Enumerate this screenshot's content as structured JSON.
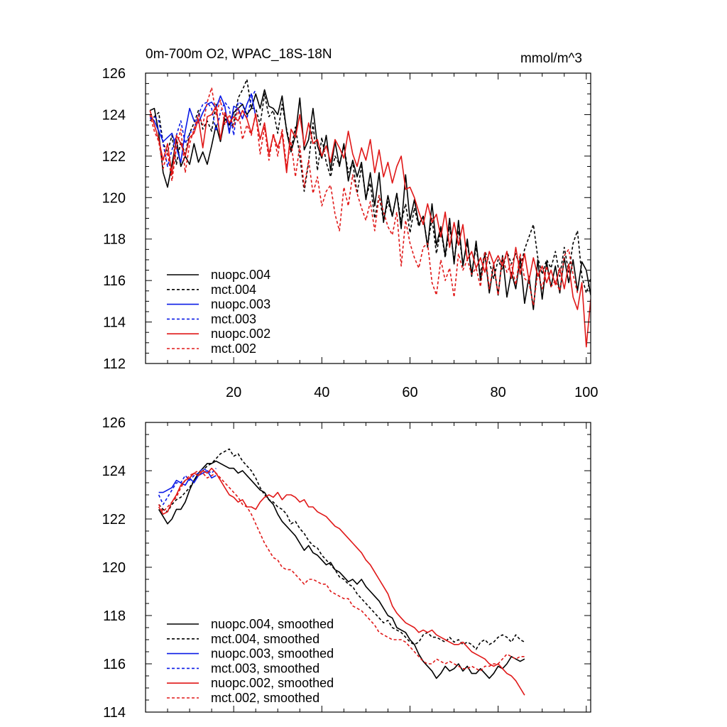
{
  "chart_data": [
    {
      "type": "line",
      "title": "0m-700m O2, WPAC_18S-18N",
      "units": "mmol/m^3",
      "xlim": [
        0,
        101
      ],
      "ylim": [
        112,
        126
      ],
      "x_ticks": [
        20,
        40,
        60,
        80,
        100
      ],
      "y_ticks": [
        112,
        114,
        116,
        118,
        120,
        122,
        124,
        126
      ],
      "legend_position": "bottom-left",
      "series": [
        {
          "name": "nuopc.004",
          "color": "#000000",
          "dash": false,
          "x_start": 1,
          "values": [
            124.2,
            124.3,
            123.1,
            121.2,
            120.5,
            121.6,
            122.8,
            121.5,
            122.0,
            121.6,
            122.6,
            121.7,
            122.2,
            121.6,
            122.5,
            123.5,
            122.7,
            123.8,
            123.5,
            124.1,
            124.3,
            124.5,
            124.0,
            124.3,
            125.0,
            124.3,
            125.2,
            124.4,
            124.3,
            124.0,
            124.9,
            123.2,
            122.2,
            123.0,
            124.8,
            122.3,
            122.8,
            124.3,
            122.5,
            121.9,
            123.0,
            121.3,
            122.7,
            121.5,
            122.6,
            120.8,
            121.8,
            121.0,
            121.7,
            119.9,
            121.2,
            119.6,
            121.2,
            118.8,
            120.1,
            119.1,
            120.2,
            118.5,
            121.1,
            118.9,
            119.9,
            118.7,
            119.1,
            117.6,
            119.7,
            117.7,
            118.6,
            117.2,
            119.0,
            116.8,
            118.9,
            116.7,
            118.0,
            116.2,
            117.9,
            116.0,
            117.3,
            115.4,
            116.8,
            115.3,
            117.2,
            115.2,
            116.4,
            115.6,
            117.1,
            114.9,
            116.2,
            114.6,
            117.0,
            115.1,
            116.9,
            115.7,
            116.7,
            115.4,
            117.1,
            115.9,
            117.0,
            115.5,
            116.9,
            116.5,
            115.3
          ]
        },
        {
          "name": "mct.004",
          "color": "#000000",
          "dash": true,
          "x_start": 1,
          "values": [
            123.7,
            123.9,
            124.1,
            122.6,
            122.2,
            123.0,
            121.6,
            122.7,
            122.1,
            123.1,
            123.6,
            124.2,
            123.3,
            123.7,
            123.2,
            124.5,
            122.7,
            124.0,
            123.3,
            123.6,
            124.8,
            125.2,
            125.7,
            124.3,
            124.3,
            123.5,
            125.0,
            123.9,
            124.2,
            123.1,
            124.5,
            123.3,
            122.3,
            123.4,
            122.0,
            120.3,
            121.7,
            123.6,
            121.3,
            122.9,
            121.7,
            121.0,
            122.0,
            121.6,
            122.5,
            121.2,
            121.7,
            120.2,
            121.5,
            120.0,
            120.7,
            119.0,
            120.1,
            118.9,
            119.8,
            119.1,
            120.2,
            118.8,
            119.7,
            118.3,
            119.5,
            118.6,
            119.1,
            117.7,
            119.0,
            117.3,
            118.5,
            117.1,
            118.6,
            117.0,
            118.4,
            116.8,
            117.8,
            116.4,
            117.6,
            116.3,
            117.4,
            116.9,
            116.1,
            117.0,
            116.5,
            117.4,
            116.8,
            117.3,
            116.6,
            117.5,
            118.1,
            118.7,
            117.1,
            116.3,
            117.0,
            116.6,
            117.4,
            116.2,
            117.6,
            116.4,
            117.8,
            118.4,
            116.2,
            115.4,
            116.1
          ]
        },
        {
          "name": "nuopc.003",
          "color": "#0a1ae6",
          "dash": false,
          "x_start": 1,
          "values": [
            123.9,
            123.7,
            123.2,
            122.7,
            122.9,
            123.1,
            122.4,
            121.7,
            123.2,
            124.3,
            123.7,
            123.6,
            124.1,
            124.5,
            124.6,
            124.3,
            124.9,
            124.4,
            123.1,
            124.4,
            124.3,
            123.8,
            124.5,
            125.0,
            123.9
          ]
        },
        {
          "name": "mct.003",
          "color": "#0a1ae6",
          "dash": true,
          "x_start": 1,
          "values": [
            123.8,
            123.9,
            123.7,
            122.6,
            121.5,
            122.3,
            123.0,
            123.7,
            122.6,
            123.1,
            123.3,
            124.0,
            124.5,
            124.6,
            124.3,
            123.2,
            124.1,
            124.6,
            124.3,
            123.0,
            124.6,
            124.5,
            123.8,
            124.8,
            125.2
          ]
        },
        {
          "name": "nuopc.002",
          "color": "#e01818",
          "dash": false,
          "x_start": 1,
          "values": [
            124.2,
            123.5,
            122.8,
            121.8,
            122.6,
            121.1,
            123.0,
            122.6,
            122.0,
            122.9,
            123.1,
            123.8,
            122.4,
            123.9,
            124.0,
            124.4,
            122.8,
            124.1,
            123.6,
            123.9,
            123.7,
            124.2,
            123.8,
            123.1,
            124.0,
            122.8,
            123.6,
            122.1,
            123.0,
            122.4,
            123.1,
            121.2,
            123.3,
            122.9,
            124.0,
            122.5,
            123.6,
            122.6,
            122.8,
            122.0,
            122.5,
            121.7,
            122.8,
            122.4,
            121.9,
            123.2,
            122.1,
            121.5,
            122.4,
            121.8,
            122.8,
            121.2,
            122.3,
            121.0,
            121.7,
            120.7,
            121.5,
            122.0,
            120.4,
            120.5,
            120.0,
            119.3,
            118.7,
            119.7,
            118.8,
            119.2,
            118.1,
            119.3,
            117.6,
            118.8,
            117.7,
            118.7,
            117.0,
            117.4,
            116.6,
            117.1,
            116.4,
            117.4,
            116.8,
            117.2,
            116.7,
            117.4,
            116.1,
            117.6,
            116.3,
            117.3,
            116.0,
            117.1,
            116.2,
            116.7,
            115.9,
            116.5,
            115.8,
            116.6,
            115.6,
            116.8,
            115.2,
            114.6,
            115.9,
            112.8,
            115.1
          ]
        },
        {
          "name": "mct.002",
          "color": "#e01818",
          "dash": true,
          "x_start": 1,
          "values": [
            124.0,
            123.2,
            122.7,
            121.4,
            122.2,
            120.8,
            122.4,
            123.3,
            121.2,
            122.6,
            123.3,
            124.0,
            123.5,
            124.6,
            125.3,
            124.0,
            124.7,
            123.5,
            124.0,
            123.4,
            124.3,
            122.8,
            123.5,
            123.0,
            124.1,
            122.1,
            123.4,
            121.8,
            123.1,
            122.0,
            123.3,
            121.5,
            122.7,
            121.0,
            122.5,
            120.5,
            121.8,
            120.2,
            121.0,
            119.6,
            120.3,
            120.6,
            119.2,
            118.4,
            120.5,
            119.6,
            121.1,
            120.2,
            119.5,
            118.9,
            119.8,
            118.4,
            120.1,
            119.3,
            118.6,
            118.2,
            119.3,
            116.7,
            118.9,
            117.8,
            117.1,
            116.6,
            117.6,
            117.8,
            115.9,
            115.3,
            117.0,
            116.0,
            116.6,
            115.2,
            117.3,
            116.5,
            117.0,
            116.3,
            116.6,
            115.7,
            117.4,
            115.6,
            116.8,
            115.3,
            117.1,
            116.4,
            116.8,
            115.8,
            117.3,
            116.1,
            115.9,
            114.8,
            116.4,
            115.6,
            116.7,
            115.7,
            116.0,
            115.5,
            117.2,
            117.5,
            116.3,
            115.4
          ]
        }
      ]
    },
    {
      "type": "line",
      "xlim": [
        0,
        101
      ],
      "ylim": [
        114,
        126
      ],
      "y_ticks": [
        114,
        116,
        118,
        120,
        122,
        124,
        126
      ],
      "legend_position": "bottom-left",
      "series": [
        {
          "name": "nuopc.004, smoothed",
          "color": "#000000",
          "dash": false,
          "x_start": 3,
          "values": [
            122.4,
            122.1,
            121.8,
            122.0,
            122.4,
            122.4,
            122.7,
            123.2,
            123.6,
            123.9,
            124.1,
            124.3,
            124.3,
            124.4,
            124.3,
            124.2,
            124.1,
            124.1,
            123.9,
            124.0,
            123.8,
            123.6,
            123.4,
            123.2,
            123.1,
            122.8,
            122.6,
            122.2,
            121.9,
            121.7,
            121.5,
            121.3,
            121.0,
            120.7,
            120.9,
            120.6,
            120.5,
            120.3,
            120.1,
            120.2,
            119.9,
            119.8,
            119.6,
            119.4,
            119.5,
            119.3,
            119.5,
            119.2,
            119.0,
            118.8,
            118.6,
            118.3,
            118.0,
            117.9,
            117.5,
            117.4,
            117.3,
            117.0,
            116.8,
            116.4,
            116.1,
            115.9,
            115.7,
            115.4,
            115.6,
            115.9,
            115.7,
            115.8,
            116.0,
            115.7,
            115.9,
            115.6,
            115.6,
            115.8,
            115.6,
            115.4,
            115.6,
            115.9,
            115.8,
            116.0,
            116.3,
            116.2,
            116.1,
            116.2
          ]
        },
        {
          "name": "mct.004, smoothed",
          "color": "#000000",
          "dash": true,
          "x_start": 3,
          "values": [
            122.6,
            122.4,
            122.3,
            122.6,
            122.8,
            122.9,
            123.1,
            123.3,
            123.6,
            123.8,
            124.0,
            124.2,
            124.3,
            124.5,
            124.7,
            124.8,
            124.9,
            124.6,
            124.7,
            124.4,
            124.2,
            124.0,
            123.7,
            123.3,
            123.0,
            122.8,
            122.7,
            122.5,
            122.4,
            122.2,
            121.8,
            121.9,
            121.6,
            121.4,
            121.1,
            120.9,
            120.8,
            120.5,
            120.3,
            120.1,
            119.9,
            119.6,
            119.5,
            119.3,
            119.2,
            118.9,
            118.7,
            118.5,
            118.3,
            118.1,
            117.9,
            117.7,
            117.8,
            117.5,
            117.4,
            117.3,
            117.1,
            116.9,
            116.8,
            116.9,
            117.2,
            117.3,
            117.1,
            117.1,
            117.0,
            116.9,
            117.1,
            116.9,
            117.0,
            116.8,
            116.9,
            116.8,
            116.6,
            116.9,
            117.0,
            116.8,
            116.9,
            117.1,
            117.2,
            117.1,
            116.9,
            117.2,
            117.0,
            116.9
          ]
        },
        {
          "name": "nuopc.003, smoothed",
          "color": "#0a1ae6",
          "dash": false,
          "x_start": 3,
          "values": [
            123.1,
            123.1,
            123.2,
            123.3,
            123.6,
            123.5,
            123.4,
            123.7,
            123.5,
            123.8,
            123.9,
            124.0,
            123.7,
            123.8
          ]
        },
        {
          "name": "mct.003, smoothed",
          "color": "#0a1ae6",
          "dash": true,
          "x_start": 3,
          "values": [
            123.0,
            122.6,
            122.9,
            123.2,
            123.5,
            123.5,
            123.8,
            123.6,
            123.8,
            123.9,
            124.1,
            124.0,
            123.9,
            124.1
          ]
        },
        {
          "name": "nuopc.002, smoothed",
          "color": "#e01818",
          "dash": false,
          "x_start": 3,
          "values": [
            122.5,
            122.2,
            122.3,
            122.7,
            123.0,
            123.4,
            123.6,
            123.7,
            123.9,
            123.8,
            124.0,
            123.9,
            124.1,
            123.9,
            123.6,
            123.3,
            123.0,
            122.9,
            122.7,
            122.8,
            122.5,
            122.5,
            122.4,
            122.7,
            122.9,
            123.0,
            122.9,
            123.1,
            122.8,
            123.0,
            123.0,
            122.9,
            122.7,
            122.8,
            122.5,
            122.5,
            122.3,
            122.2,
            122.1,
            121.9,
            121.7,
            121.6,
            121.4,
            121.2,
            121.0,
            120.8,
            120.6,
            120.3,
            120.1,
            119.8,
            119.5,
            119.2,
            118.9,
            118.4,
            118.1,
            117.9,
            117.7,
            117.6,
            117.5,
            117.3,
            117.4,
            117.3,
            117.4,
            117.2,
            117.1,
            117.0,
            116.9,
            116.8,
            116.8,
            116.9,
            116.7,
            116.5,
            116.4,
            116.3,
            116.2,
            116.0,
            115.9,
            116.0,
            115.8,
            115.6,
            115.5,
            115.3,
            115.0,
            114.7
          ]
        },
        {
          "name": "mct.002, smoothed",
          "color": "#e01818",
          "dash": true,
          "x_start": 3,
          "values": [
            122.6,
            122.3,
            122.5,
            122.7,
            122.9,
            123.3,
            123.6,
            123.8,
            123.9,
            124.0,
            123.9,
            123.7,
            123.8,
            123.9,
            123.7,
            123.5,
            123.3,
            123.1,
            122.9,
            122.6,
            122.5,
            122.2,
            121.8,
            121.4,
            121.0,
            120.7,
            120.4,
            120.3,
            120.0,
            119.9,
            119.9,
            119.7,
            119.5,
            119.3,
            119.5,
            119.5,
            119.4,
            119.3,
            119.3,
            119.0,
            118.9,
            118.8,
            118.7,
            118.7,
            118.4,
            118.3,
            118.2,
            118.0,
            117.8,
            117.6,
            117.3,
            117.2,
            117.1,
            117.0,
            117.0,
            117.0,
            116.9,
            116.7,
            116.5,
            116.3,
            116.1,
            116.0,
            116.0,
            116.2,
            116.1,
            116.0,
            116.1,
            116.0,
            115.9,
            115.8,
            115.8,
            115.9,
            115.8,
            115.7,
            115.9,
            115.9,
            116.0,
            116.0,
            116.2,
            116.4,
            116.3,
            116.2,
            116.3,
            116.3
          ]
        }
      ]
    }
  ]
}
